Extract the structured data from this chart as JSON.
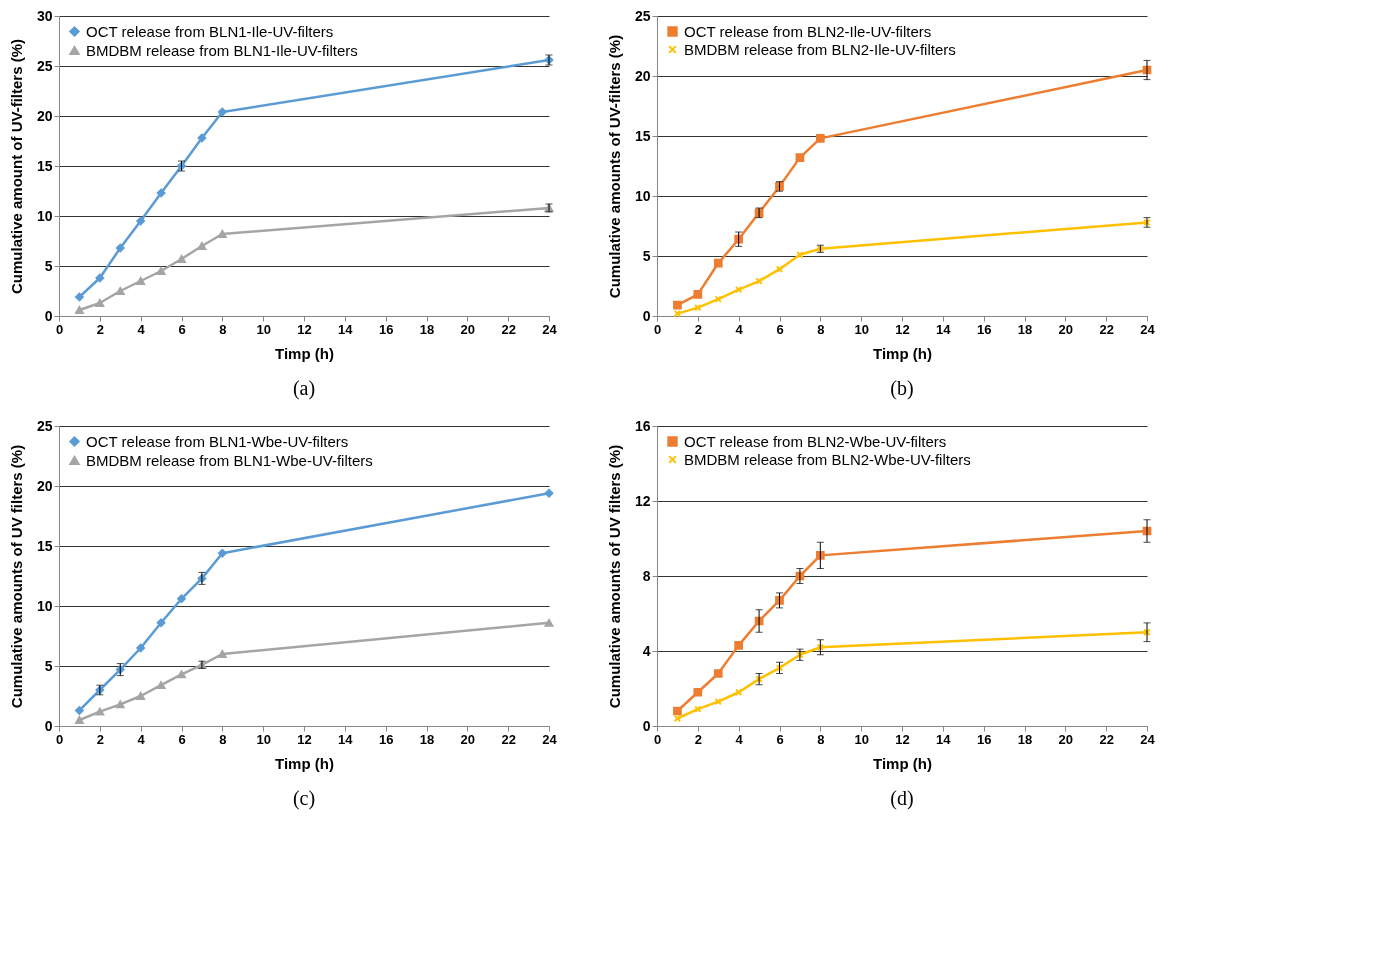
{
  "chart_data": [
    {
      "type": "line",
      "xlabel": "Timp (h)",
      "ylabel": "Cumulative amount of UV-filters (%)",
      "annotations": [
        "(a)"
      ],
      "x": [
        1,
        2,
        3,
        4,
        5,
        6,
        7,
        8,
        24
      ],
      "xlim": [
        0,
        24
      ],
      "xticks": [
        0,
        2,
        4,
        6,
        8,
        10,
        12,
        14,
        16,
        18,
        20,
        22,
        24
      ],
      "ylim": [
        0,
        30
      ],
      "yticks": [
        0,
        5,
        10,
        15,
        20,
        25,
        30
      ],
      "grid": "y",
      "legend": "top left",
      "series": [
        {
          "name": "OCT release from BLN1-Ile-UV-filters",
          "color": "#5b9bd5",
          "marker": "diamond",
          "values": [
            1.9,
            3.8,
            6.8,
            9.5,
            12.3,
            15.0,
            17.8,
            20.4,
            25.6
          ],
          "errors": [
            null,
            null,
            null,
            null,
            null,
            0.5,
            null,
            null,
            0.5
          ]
        },
        {
          "name": "BMDBM release from BLN1-Ile-UV-filters",
          "color": "#a5a5a5",
          "marker": "triangle",
          "values": [
            0.6,
            1.3,
            2.5,
            3.5,
            4.5,
            5.7,
            7.0,
            8.2,
            10.8
          ],
          "errors": [
            null,
            null,
            null,
            null,
            null,
            null,
            null,
            null,
            0.4
          ]
        }
      ]
    },
    {
      "type": "line",
      "xlabel": "Timp (h)",
      "ylabel": "Cumulative amounts of UV-filters (%)",
      "annotations": [
        "(b)"
      ],
      "x": [
        1,
        2,
        3,
        4,
        5,
        6,
        7,
        8,
        24
      ],
      "xlim": [
        0,
        24
      ],
      "xticks": [
        0,
        2,
        4,
        6,
        8,
        10,
        12,
        14,
        16,
        18,
        20,
        22,
        24
      ],
      "ylim": [
        0,
        25
      ],
      "yticks": [
        0,
        5,
        10,
        15,
        20,
        25
      ],
      "grid": "y",
      "legend": "top left",
      "series": [
        {
          "name": "OCT release from BLN2-Ile-UV-filters",
          "color": "#ed7d31",
          "marker": "square",
          "values": [
            0.9,
            1.8,
            4.4,
            6.4,
            8.6,
            10.8,
            13.2,
            14.8,
            20.5
          ],
          "errors": [
            null,
            null,
            null,
            0.6,
            0.4,
            0.4,
            null,
            null,
            0.8
          ]
        },
        {
          "name": "BMDBM release from BLN2-Ile-UV-filters",
          "color": "#ffc000",
          "marker": "cross",
          "values": [
            0.2,
            0.7,
            1.4,
            2.2,
            2.9,
            3.9,
            5.1,
            5.6,
            7.8
          ],
          "errors": [
            null,
            null,
            null,
            null,
            null,
            null,
            null,
            0.3,
            0.4
          ]
        }
      ]
    },
    {
      "type": "line",
      "xlabel": "Timp (h)",
      "ylabel": "Cumulative amounts of UV filters  (%)",
      "annotations": [
        "(c)"
      ],
      "x": [
        1,
        2,
        3,
        4,
        5,
        6,
        7,
        8,
        24
      ],
      "xlim": [
        0,
        24
      ],
      "xticks": [
        0,
        2,
        4,
        6,
        8,
        10,
        12,
        14,
        16,
        18,
        20,
        22,
        24
      ],
      "ylim": [
        0,
        25
      ],
      "yticks": [
        0,
        5,
        10,
        15,
        20,
        25
      ],
      "grid": "y",
      "legend": "top left",
      "series": [
        {
          "name": "OCT release from BLN1-Wbe-UV-filters",
          "color": "#5b9bd5",
          "marker": "diamond",
          "values": [
            1.3,
            3.0,
            4.7,
            6.5,
            8.6,
            10.6,
            12.3,
            14.4,
            19.4
          ],
          "errors": [
            null,
            0.4,
            0.5,
            null,
            null,
            null,
            0.5,
            null,
            null
          ]
        },
        {
          "name": "BMDBM release from BLN1-Wbe-UV-filters",
          "color": "#a5a5a5",
          "marker": "triangle",
          "values": [
            0.5,
            1.2,
            1.8,
            2.5,
            3.4,
            4.3,
            5.1,
            6.0,
            8.6
          ],
          "errors": [
            null,
            null,
            null,
            null,
            null,
            null,
            0.3,
            null,
            null
          ]
        }
      ]
    },
    {
      "type": "line",
      "xlabel": "Timp (h)",
      "ylabel": "Cumulative amounts of UV filters  (%)",
      "annotations": [
        "(d)"
      ],
      "x": [
        1,
        2,
        3,
        4,
        5,
        6,
        7,
        8,
        24
      ],
      "xlim": [
        0,
        24
      ],
      "xticks": [
        0,
        2,
        4,
        6,
        8,
        10,
        12,
        14,
        16,
        18,
        20,
        22,
        24
      ],
      "ylim": [
        0,
        16
      ],
      "yticks": [
        0,
        4,
        8,
        12,
        16
      ],
      "grid": "y",
      "legend": "top left",
      "series": [
        {
          "name": "OCT release from BLN2-Wbe-UV-filters",
          "color": "#ed7d31",
          "marker": "square",
          "values": [
            0.8,
            1.8,
            2.8,
            4.3,
            5.6,
            6.7,
            8.0,
            9.1,
            10.4
          ],
          "errors": [
            null,
            null,
            null,
            null,
            0.6,
            0.4,
            0.4,
            0.7,
            0.6
          ]
        },
        {
          "name": "BMDBM release from BLN2-Wbe-UV-filters",
          "color": "#ffc000",
          "marker": "cross",
          "values": [
            0.4,
            0.9,
            1.3,
            1.8,
            2.5,
            3.1,
            3.8,
            4.2,
            5.0
          ],
          "errors": [
            null,
            null,
            null,
            null,
            0.3,
            0.3,
            0.3,
            0.4,
            0.5
          ]
        }
      ]
    }
  ]
}
